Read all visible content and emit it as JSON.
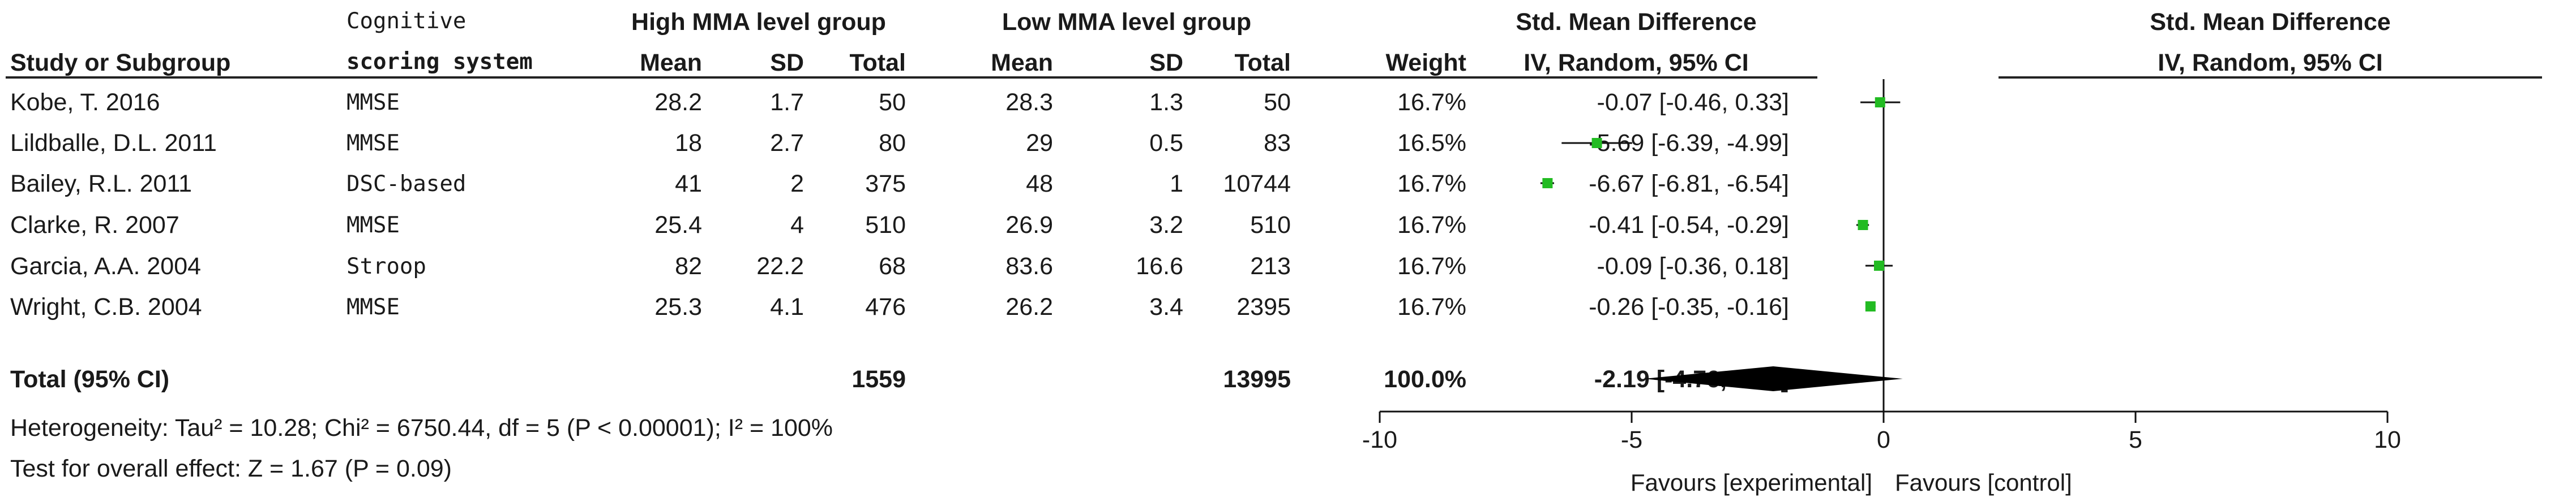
{
  "header": {
    "study": "Study or Subgroup",
    "cog_line1": "Cognitive",
    "cog_line2": "scoring system",
    "high_group": "High MMA level group",
    "low_group": "Low MMA level group",
    "mean": "Mean",
    "sd": "SD",
    "total": "Total",
    "weight": "Weight",
    "smd_title": "Std. Mean Difference",
    "smd_sub": "IV, Random, 95% CI",
    "plot_title": "Std. Mean Difference",
    "plot_sub": "IV, Random, 95% CI"
  },
  "rows": [
    {
      "study": "Kobe, T. 2016",
      "system": "MMSE",
      "hm": "28.2",
      "hsd": "1.7",
      "ht": "50",
      "lm": "28.3",
      "lsd": "1.3",
      "lt": "50",
      "w": "16.7%",
      "ci": "-0.07 [-0.46, 0.33]"
    },
    {
      "study": "Lildballe, D.L. 2011",
      "system": "MMSE",
      "hm": "18",
      "hsd": "2.7",
      "ht": "80",
      "lm": "29",
      "lsd": "0.5",
      "lt": "83",
      "w": "16.5%",
      "ci": "-5.69 [-6.39, -4.99]"
    },
    {
      "study": "Bailey, R.L. 2011",
      "system": "DSC-based",
      "hm": "41",
      "hsd": "2",
      "ht": "375",
      "lm": "48",
      "lsd": "1",
      "lt": "10744",
      "w": "16.7%",
      "ci": "-6.67 [-6.81, -6.54]"
    },
    {
      "study": "Clarke, R. 2007",
      "system": "MMSE",
      "hm": "25.4",
      "hsd": "4",
      "ht": "510",
      "lm": "26.9",
      "lsd": "3.2",
      "lt": "510",
      "w": "16.7%",
      "ci": "-0.41 [-0.54, -0.29]"
    },
    {
      "study": "Garcia, A.A. 2004",
      "system": "Stroop",
      "hm": "82",
      "hsd": "22.2",
      "ht": "68",
      "lm": "83.6",
      "lsd": "16.6",
      "lt": "213",
      "w": "16.7%",
      "ci": "-0.09 [-0.36, 0.18]"
    },
    {
      "study": "Wright, C.B. 2004",
      "system": "MMSE",
      "hm": "25.3",
      "hsd": "4.1",
      "ht": "476",
      "lm": "26.2",
      "lsd": "3.4",
      "lt": "2395",
      "w": "16.7%",
      "ci": "-0.26 [-0.35, -0.16]"
    }
  ],
  "total": {
    "label": "Total (95% CI)",
    "ht": "1559",
    "lt": "13995",
    "w": "100.0%",
    "ci": "-2.19 [-4.76, 0.38]"
  },
  "heterogeneity": "Heterogeneity: Tau² = 10.28; Chi² = 6750.44, df = 5 (P < 0.00001); I² = 100%",
  "overall_effect": "Test for overall effect: Z = 1.67 (P = 0.09)",
  "axis": {
    "favours_left": "Favours [experimental]",
    "favours_right": "Favours [control]"
  },
  "chart_data": {
    "type": "scatter",
    "title": "Std. Mean Difference",
    "subtitle": "IV, Random, 95% CI",
    "xlim": [
      -10,
      10
    ],
    "ticks": [
      -10,
      -5,
      0,
      5,
      10
    ],
    "reference_line": 0,
    "marker_color": "#22bb22",
    "studies": [
      {
        "name": "Kobe, T. 2016",
        "est": -0.07,
        "lo": -0.46,
        "hi": 0.33,
        "weight": 16.7
      },
      {
        "name": "Lildballe, D.L. 2011",
        "est": -5.69,
        "lo": -6.39,
        "hi": -4.99,
        "weight": 16.5
      },
      {
        "name": "Bailey, R.L. 2011",
        "est": -6.67,
        "lo": -6.81,
        "hi": -6.54,
        "weight": 16.7
      },
      {
        "name": "Clarke, R. 2007",
        "est": -0.41,
        "lo": -0.54,
        "hi": -0.29,
        "weight": 16.7
      },
      {
        "name": "Garcia, A.A. 2004",
        "est": -0.09,
        "lo": -0.36,
        "hi": 0.18,
        "weight": 16.7
      },
      {
        "name": "Wright, C.B. 2004",
        "est": -0.26,
        "lo": -0.35,
        "hi": -0.16,
        "weight": 16.7
      }
    ],
    "pooled": {
      "est": -2.19,
      "lo": -4.76,
      "hi": 0.38
    }
  }
}
